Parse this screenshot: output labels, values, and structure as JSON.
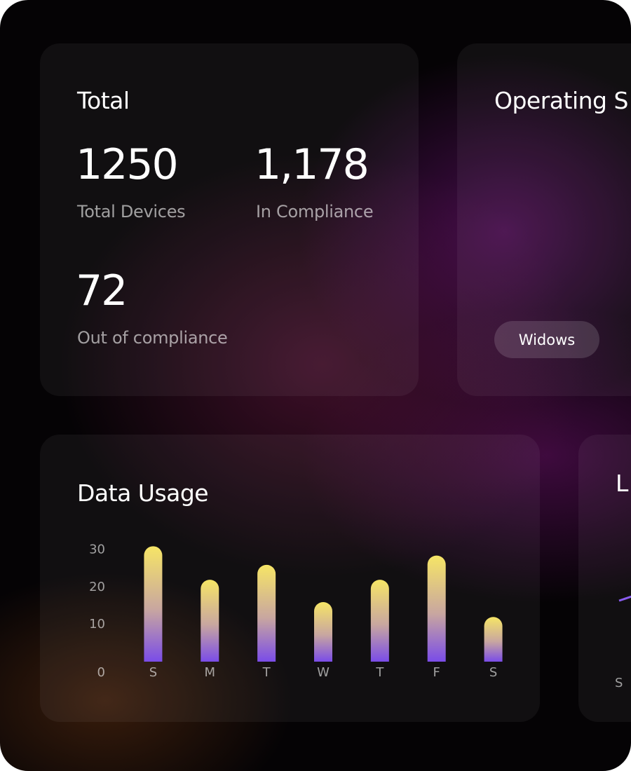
{
  "total_card": {
    "title": "Total",
    "stats": [
      {
        "value": "1250",
        "label": "Total Devices"
      },
      {
        "value": "1,178",
        "label": "In Compliance"
      },
      {
        "value": "72",
        "label": "Out of compliance"
      }
    ]
  },
  "os_card": {
    "title": "Operating S",
    "button": "Widows"
  },
  "chart_data": {
    "type": "bar",
    "title": "Data Usage",
    "categories": [
      "S",
      "M",
      "T",
      "W",
      "T",
      "F",
      "S"
    ],
    "values": [
      31,
      22,
      26,
      16,
      22,
      28.5,
      12
    ],
    "ylim": [
      0,
      32
    ],
    "yticks": [
      0,
      10,
      20,
      30
    ]
  },
  "side_card": {
    "title": "L",
    "x_label": "S"
  }
}
